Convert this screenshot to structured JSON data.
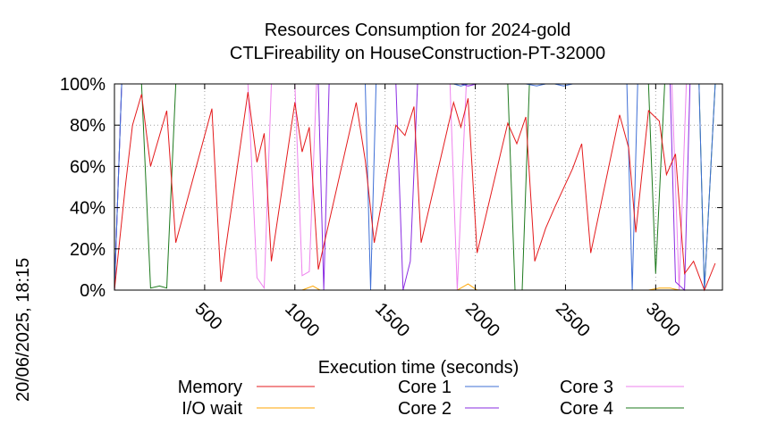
{
  "chart_data": {
    "type": "line",
    "title": "Resources Consumption for 2024-gold",
    "subtitle": "CTLFireability on HouseConstruction-PT-32000",
    "xlabel": "Execution time (seconds)",
    "ylabel": "",
    "timestamp": "20/06/2025, 18:15",
    "xlim": [
      0,
      3370
    ],
    "ylim": [
      0,
      100
    ],
    "xticks": [
      500,
      1000,
      1500,
      2000,
      2500,
      3000
    ],
    "yticks": [
      0,
      20,
      40,
      60,
      80,
      100
    ],
    "ytick_labels": [
      "0%",
      "20%",
      "40%",
      "60%",
      "80%",
      "100%"
    ],
    "grid": true,
    "legend_position": "bottom",
    "series": [
      {
        "name": "Memory",
        "color": "#e41a1c",
        "points": [
          [
            0,
            0
          ],
          [
            60,
            50
          ],
          [
            100,
            80
          ],
          [
            150,
            95
          ],
          [
            200,
            60
          ],
          [
            290,
            87
          ],
          [
            340,
            23
          ],
          [
            540,
            88
          ],
          [
            590,
            4
          ],
          [
            740,
            96
          ],
          [
            790,
            62
          ],
          [
            830,
            76
          ],
          [
            870,
            14
          ],
          [
            1000,
            91
          ],
          [
            1040,
            67
          ],
          [
            1080,
            79
          ],
          [
            1130,
            10
          ],
          [
            1340,
            91
          ],
          [
            1390,
            63
          ],
          [
            1440,
            23
          ],
          [
            1560,
            80
          ],
          [
            1610,
            75
          ],
          [
            1660,
            89
          ],
          [
            1700,
            23
          ],
          [
            1880,
            91
          ],
          [
            1920,
            79
          ],
          [
            1960,
            93
          ],
          [
            2010,
            18
          ],
          [
            2180,
            81
          ],
          [
            2230,
            71
          ],
          [
            2280,
            84
          ],
          [
            2330,
            14
          ],
          [
            2390,
            30
          ],
          [
            2440,
            40
          ],
          [
            2540,
            59
          ],
          [
            2590,
            71
          ],
          [
            2640,
            18
          ],
          [
            2800,
            85
          ],
          [
            2850,
            69
          ],
          [
            2890,
            28
          ],
          [
            2960,
            87
          ],
          [
            3020,
            82
          ],
          [
            3060,
            56
          ],
          [
            3110,
            66
          ],
          [
            3160,
            8
          ],
          [
            3210,
            14
          ],
          [
            3270,
            0
          ],
          [
            3330,
            13
          ]
        ]
      },
      {
        "name": "I/O wait",
        "color": "#ffa500",
        "points": [
          [
            0,
            0
          ],
          [
            1040,
            0
          ],
          [
            1100,
            2
          ],
          [
            1140,
            0
          ],
          [
            1900,
            0
          ],
          [
            1960,
            3
          ],
          [
            2010,
            0
          ],
          [
            2960,
            0
          ],
          [
            3020,
            1
          ],
          [
            3080,
            1
          ],
          [
            3130,
            0
          ],
          [
            3330,
            0
          ]
        ]
      },
      {
        "name": "Core 1",
        "color": "#3f6fd6",
        "points": [
          [
            0,
            0
          ],
          [
            40,
            100
          ],
          [
            1390,
            100
          ],
          [
            1420,
            0
          ],
          [
            1450,
            100
          ],
          [
            1880,
            100
          ],
          [
            1920,
            99
          ],
          [
            1960,
            100
          ],
          [
            2280,
            100
          ],
          [
            2340,
            99
          ],
          [
            2390,
            100
          ],
          [
            2440,
            100
          ],
          [
            2490,
            99
          ],
          [
            2540,
            100
          ],
          [
            2840,
            100
          ],
          [
            2870,
            0
          ],
          [
            2900,
            100
          ],
          [
            3240,
            100
          ],
          [
            3270,
            0
          ],
          [
            3330,
            100
          ]
        ]
      },
      {
        "name": "Core 2",
        "color": "#8a2be2",
        "points": [
          [
            0,
            0
          ],
          [
            40,
            100
          ],
          [
            1130,
            100
          ],
          [
            1160,
            0
          ],
          [
            1190,
            100
          ],
          [
            1560,
            100
          ],
          [
            1600,
            0
          ],
          [
            1640,
            14
          ],
          [
            1680,
            100
          ],
          [
            1880,
            100
          ],
          [
            1920,
            100
          ],
          [
            1960,
            99
          ],
          [
            2010,
            100
          ],
          [
            3080,
            100
          ],
          [
            3110,
            4
          ],
          [
            3160,
            0
          ],
          [
            3190,
            100
          ],
          [
            3330,
            100
          ]
        ]
      },
      {
        "name": "Core 3",
        "color": "#ee82ee",
        "points": [
          [
            0,
            0
          ],
          [
            40,
            100
          ],
          [
            740,
            100
          ],
          [
            790,
            6
          ],
          [
            830,
            1
          ],
          [
            870,
            100
          ],
          [
            1000,
            100
          ],
          [
            1040,
            7
          ],
          [
            1080,
            9
          ],
          [
            1120,
            100
          ],
          [
            1860,
            100
          ],
          [
            1900,
            0
          ],
          [
            1950,
            100
          ],
          [
            3090,
            100
          ],
          [
            3130,
            0
          ],
          [
            3170,
            100
          ],
          [
            3330,
            100
          ]
        ]
      },
      {
        "name": "Core 4",
        "color": "#1e7a1e",
        "points": [
          [
            0,
            0
          ],
          [
            40,
            100
          ],
          [
            150,
            100
          ],
          [
            200,
            1
          ],
          [
            250,
            2
          ],
          [
            290,
            1
          ],
          [
            340,
            100
          ],
          [
            2180,
            100
          ],
          [
            2220,
            0
          ],
          [
            2260,
            0
          ],
          [
            2300,
            100
          ],
          [
            2960,
            100
          ],
          [
            3000,
            8
          ],
          [
            3050,
            100
          ],
          [
            3240,
            100
          ],
          [
            3270,
            0
          ],
          [
            3330,
            100
          ]
        ]
      }
    ]
  }
}
